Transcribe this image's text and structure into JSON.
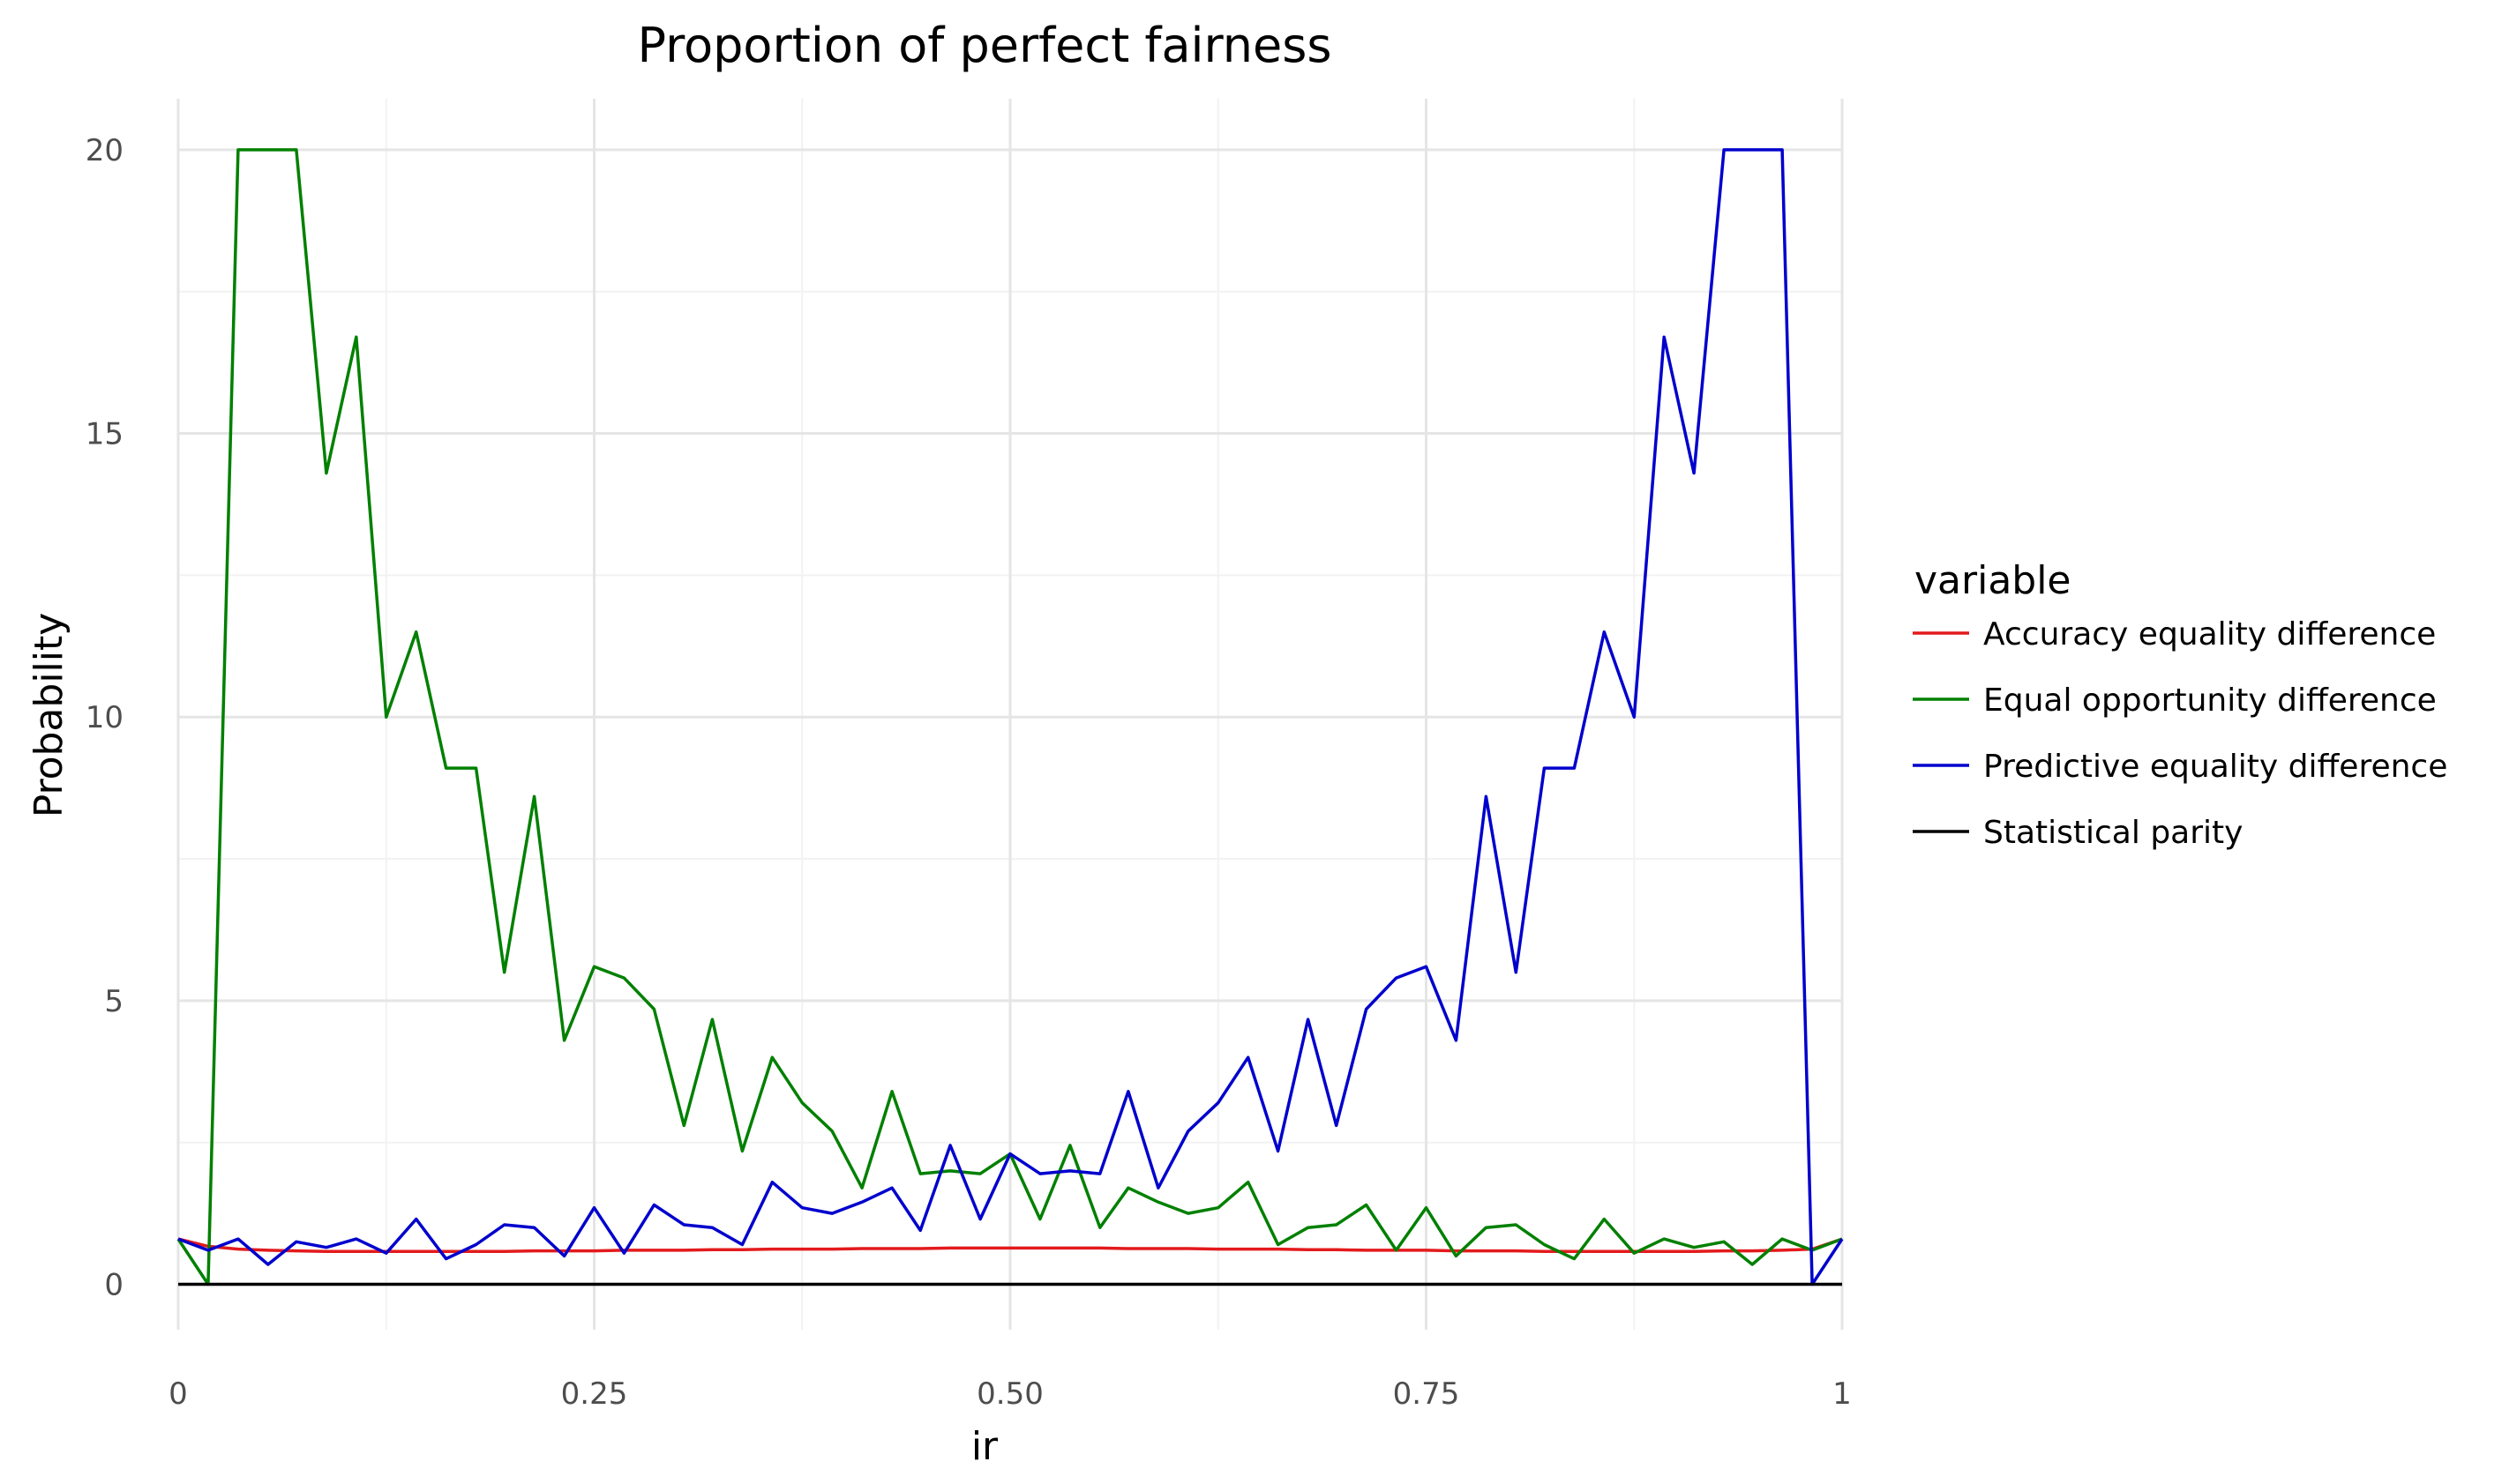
{
  "chart_data": {
    "type": "line",
    "title": "Proportion of perfect fairness",
    "xlabel": "ir",
    "ylabel": "Probability",
    "xlim": [
      0,
      1
    ],
    "ylim": [
      -0.8,
      20.9
    ],
    "x_ticks": [
      0,
      0.25,
      0.5,
      0.75,
      1
    ],
    "x_tick_labels": [
      "0",
      "0.25",
      "0.50",
      "0.75",
      "1"
    ],
    "y_ticks": [
      0,
      5,
      10,
      15,
      20
    ],
    "y_tick_labels": [
      "0",
      "5",
      "10",
      "15",
      "20"
    ],
    "grid": true,
    "legend": {
      "title": "variable",
      "position": "right"
    },
    "x": [
      0.0,
      0.018,
      0.036,
      0.054,
      0.071,
      0.089,
      0.107,
      0.125,
      0.143,
      0.161,
      0.179,
      0.196,
      0.214,
      0.232,
      0.25,
      0.268,
      0.286,
      0.304,
      0.321,
      0.339,
      0.357,
      0.375,
      0.393,
      0.411,
      0.429,
      0.446,
      0.464,
      0.482,
      0.5,
      0.518,
      0.536,
      0.554,
      0.571,
      0.589,
      0.607,
      0.625,
      0.643,
      0.661,
      0.679,
      0.696,
      0.714,
      0.732,
      0.75,
      0.768,
      0.786,
      0.804,
      0.821,
      0.839,
      0.857,
      0.875,
      0.893,
      0.911,
      0.929,
      0.946,
      0.964,
      0.982,
      1.0
    ],
    "series": [
      {
        "name": "Accuracy equality difference",
        "color": "#e31a1c",
        "values": [
          0.8,
          0.67,
          0.62,
          0.6,
          0.59,
          0.58,
          0.58,
          0.58,
          0.58,
          0.58,
          0.58,
          0.58,
          0.59,
          0.59,
          0.59,
          0.6,
          0.6,
          0.6,
          0.61,
          0.61,
          0.62,
          0.62,
          0.62,
          0.63,
          0.63,
          0.63,
          0.64,
          0.64,
          0.64,
          0.64,
          0.64,
          0.64,
          0.63,
          0.63,
          0.63,
          0.62,
          0.62,
          0.62,
          0.61,
          0.61,
          0.6,
          0.6,
          0.6,
          0.59,
          0.59,
          0.59,
          0.58,
          0.58,
          0.58,
          0.58,
          0.58,
          0.58,
          0.59,
          0.59,
          0.6,
          0.62,
          0.8
        ]
      },
      {
        "name": "Equal opportunity difference",
        "color": "#008000",
        "values": [
          0.8,
          0.0,
          20.0,
          20.0,
          20.0,
          14.3,
          16.7,
          10.0,
          11.5,
          9.1,
          9.1,
          5.5,
          8.6,
          4.3,
          5.6,
          5.4,
          4.85,
          2.8,
          4.67,
          2.35,
          4.0,
          3.2,
          2.7,
          1.7,
          3.4,
          1.95,
          2.0,
          1.95,
          2.3,
          1.15,
          2.45,
          1.0,
          1.7,
          1.45,
          1.25,
          1.35,
          1.8,
          0.7,
          1.0,
          1.05,
          1.4,
          0.6,
          1.35,
          0.5,
          1.0,
          1.05,
          0.7,
          0.45,
          1.15,
          0.55,
          0.8,
          0.65,
          0.75,
          0.35,
          0.8,
          0.6,
          0.8
        ]
      },
      {
        "name": "Predictive equality difference",
        "color": "#0000cd",
        "values": [
          0.8,
          0.6,
          0.8,
          0.35,
          0.75,
          0.65,
          0.8,
          0.55,
          1.15,
          0.45,
          0.7,
          1.05,
          1.0,
          0.5,
          1.35,
          0.55,
          1.4,
          1.05,
          1.0,
          0.7,
          1.8,
          1.35,
          1.25,
          1.45,
          1.7,
          0.95,
          2.45,
          1.15,
          2.3,
          1.95,
          2.0,
          1.95,
          3.4,
          1.7,
          2.7,
          3.2,
          4.0,
          2.35,
          4.67,
          2.8,
          4.85,
          5.4,
          5.6,
          4.3,
          8.6,
          5.5,
          9.1,
          9.1,
          11.5,
          10.0,
          16.7,
          14.3,
          20.0,
          20.0,
          20.0,
          0.0,
          0.8
        ]
      },
      {
        "name": "Statistical parity",
        "color": "#000000",
        "values": [
          0.0,
          0.0,
          0.0,
          0.0,
          0.0,
          0.0,
          0.0,
          0.0,
          0.0,
          0.0,
          0.0,
          0.0,
          0.0,
          0.0,
          0.0,
          0.0,
          0.0,
          0.0,
          0.0,
          0.0,
          0.0,
          0.0,
          0.0,
          0.0,
          0.0,
          0.0,
          0.0,
          0.0,
          0.0,
          0.0,
          0.0,
          0.0,
          0.0,
          0.0,
          0.0,
          0.0,
          0.0,
          0.0,
          0.0,
          0.0,
          0.0,
          0.0,
          0.0,
          0.0,
          0.0,
          0.0,
          0.0,
          0.0,
          0.0,
          0.0,
          0.0,
          0.0,
          0.0,
          0.0,
          0.0,
          0.0,
          0.0
        ]
      }
    ]
  }
}
